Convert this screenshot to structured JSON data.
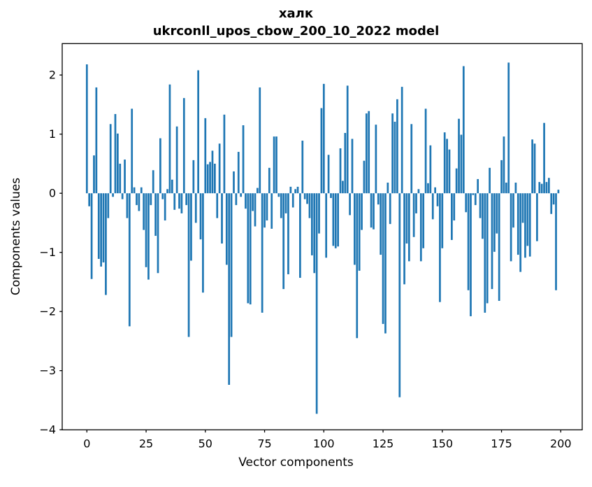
{
  "header": {
    "title_line1": "халк",
    "title_line2": "ukrconll_upos_cbow_200_10_2022 model"
  },
  "chart_data": {
    "type": "bar",
    "title": "халк",
    "subtitle": "ukrconll_upos_cbow_200_10_2022 model",
    "xlabel": "Vector components",
    "ylabel": "Components values",
    "bar_color": "#1f77b4",
    "axis_color": "#000000",
    "n_components": 200,
    "xlim": [
      -11,
      210
    ],
    "ylim": [
      -4.0,
      2.53
    ],
    "x_ticks": [
      {
        "label": "0",
        "value": 0
      },
      {
        "label": "25",
        "value": 25
      },
      {
        "label": "50",
        "value": 50
      },
      {
        "label": "75",
        "value": 75
      },
      {
        "label": "100",
        "value": 100
      },
      {
        "label": "125",
        "value": 125
      },
      {
        "label": "150",
        "value": 150
      },
      {
        "label": "175",
        "value": 175
      },
      {
        "label": "200",
        "value": 200
      }
    ],
    "y_ticks": [
      {
        "label": "2",
        "value": 2
      },
      {
        "label": "1",
        "value": 1
      },
      {
        "label": "0",
        "value": 0
      },
      {
        "label": "−1",
        "value": -1
      },
      {
        "label": "−2",
        "value": -2
      },
      {
        "label": "−3",
        "value": -3
      },
      {
        "label": "−4",
        "value": -4
      }
    ],
    "values": [
      2.18,
      -0.22,
      -1.45,
      0.64,
      1.79,
      -1.11,
      -1.24,
      -1.17,
      -1.72,
      -0.42,
      1.17,
      -0.06,
      1.34,
      1.01,
      0.5,
      -0.1,
      0.57,
      -0.42,
      -2.25,
      1.43,
      0.1,
      -0.2,
      -0.3,
      0.1,
      -0.62,
      -1.25,
      -1.46,
      -0.2,
      0.39,
      -0.72,
      -1.35,
      0.93,
      -0.1,
      -0.46,
      0.07,
      1.84,
      0.23,
      -0.28,
      1.13,
      -0.26,
      -0.34,
      1.61,
      -0.2,
      -2.43,
      -1.14,
      0.56,
      -0.5,
      2.08,
      -0.78,
      -1.68,
      1.27,
      0.49,
      0.53,
      0.72,
      0.5,
      -0.42,
      0.84,
      -0.85,
      1.33,
      -1.21,
      -3.24,
      -2.43,
      0.37,
      -0.2,
      0.7,
      -0.06,
      1.15,
      -0.26,
      -1.86,
      -1.88,
      -0.3,
      -0.56,
      0.09,
      1.79,
      -2.02,
      -0.58,
      -0.46,
      0.43,
      -0.6,
      0.96,
      0.96,
      -0.06,
      -0.42,
      -1.62,
      -0.34,
      -1.37,
      0.11,
      -0.24,
      0.07,
      0.11,
      -1.43,
      0.89,
      -0.1,
      -0.18,
      -0.42,
      -1.05,
      -1.35,
      -3.73,
      -0.68,
      1.44,
      1.85,
      -1.09,
      0.65,
      -0.08,
      -0.89,
      -0.93,
      -0.9,
      0.76,
      0.21,
      1.02,
      1.82,
      -0.37,
      0.92,
      -1.21,
      -2.45,
      -1.31,
      -0.62,
      0.55,
      1.35,
      1.39,
      -0.58,
      -0.61,
      1.16,
      -0.19,
      -1.04,
      -2.21,
      -2.37,
      0.18,
      -0.52,
      1.35,
      1.21,
      1.59,
      -3.45,
      1.8,
      -1.54,
      -0.85,
      -1.15,
      1.17,
      -0.74,
      -0.34,
      0.07,
      -1.15,
      -0.93,
      1.43,
      0.17,
      0.81,
      -0.44,
      0.1,
      -0.22,
      -1.84,
      -0.93,
      1.03,
      0.92,
      0.74,
      -0.79,
      -0.46,
      0.42,
      1.26,
      0.99,
      2.15,
      -0.32,
      -1.64,
      -2.08,
      -0.03,
      -0.2,
      0.24,
      -0.42,
      -0.77,
      -2.02,
      -1.86,
      0.43,
      -1.62,
      -0.99,
      -0.68,
      -1.82,
      0.56,
      0.96,
      0.18,
      2.21,
      -1.15,
      -0.58,
      0.18,
      -1.04,
      -1.33,
      -0.5,
      -1.09,
      -0.89,
      -1.07,
      0.91,
      0.84,
      -0.81,
      0.19,
      0.16,
      1.19,
      0.19,
      0.26,
      -0.35,
      -0.19,
      -1.64,
      0.06
    ]
  }
}
